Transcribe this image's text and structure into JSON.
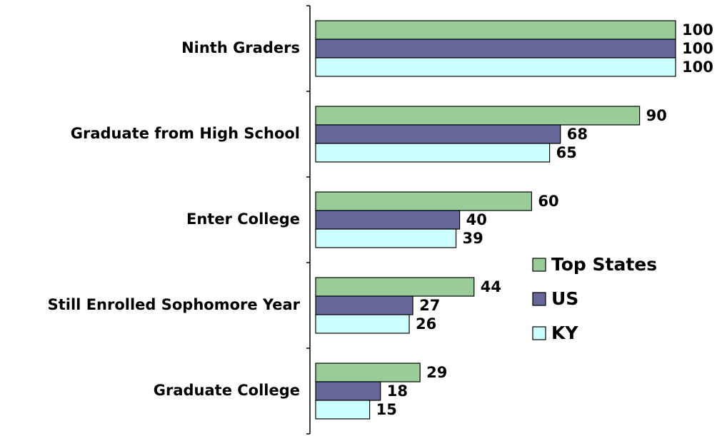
{
  "chart_data": {
    "type": "bar",
    "orientation": "horizontal",
    "categories": [
      "Ninth Graders",
      "Graduate from High School",
      "Enter College",
      "Still Enrolled Sophomore Year",
      "Graduate College"
    ],
    "series": [
      {
        "name": "Top States",
        "color": "#99cc99",
        "values": [
          100,
          90,
          60,
          44,
          29
        ]
      },
      {
        "name": "US",
        "color": "#666699",
        "values": [
          100,
          68,
          40,
          27,
          18
        ]
      },
      {
        "name": "KY",
        "color": "#ccffff",
        "values": [
          100,
          65,
          39,
          26,
          15
        ]
      }
    ],
    "xlim": [
      0,
      100
    ],
    "legend": "right",
    "data_labels": true
  }
}
